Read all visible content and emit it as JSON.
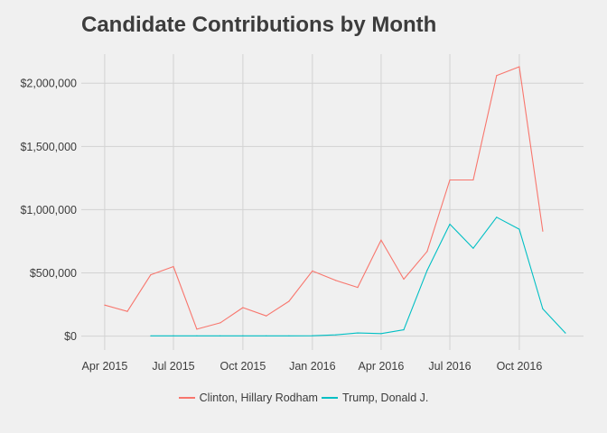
{
  "chart_data": {
    "type": "line",
    "title": "Candidate Contributions by Month",
    "xlabel": "",
    "ylabel": "",
    "x_ticks": [
      "2015-04-01",
      "2015-07-01",
      "2015-10-01",
      "2016-01-01",
      "2016-04-01",
      "2016-07-01",
      "2016-10-01"
    ],
    "x_tick_labels": [
      "Apr 2015",
      "Jul 2015",
      "Oct 2015",
      "Jan 2016",
      "Apr 2016",
      "Jul 2016",
      "Oct 2016"
    ],
    "y_ticks": [
      0,
      500000,
      1000000,
      1500000,
      2000000
    ],
    "y_tick_labels": [
      "$0",
      "$500,000",
      "$1,000,000",
      "$1,500,000",
      "$2,000,000"
    ],
    "xlim": [
      "2015-03-01",
      "2016-12-25"
    ],
    "ylim": [
      -110000,
      2230000
    ],
    "grid": true,
    "legend_position": "bottom",
    "series": [
      {
        "name": "Clinton, Hillary Rodham",
        "color": "#f8766d",
        "x": [
          "2015-04-01",
          "2015-05-01",
          "2015-06-01",
          "2015-07-01",
          "2015-08-01",
          "2015-09-01",
          "2015-10-01",
          "2015-11-01",
          "2015-12-01",
          "2016-01-01",
          "2016-02-01",
          "2016-03-01",
          "2016-04-01",
          "2016-05-01",
          "2016-06-01",
          "2016-07-01",
          "2016-08-01",
          "2016-09-01",
          "2016-10-01",
          "2016-11-01"
        ],
        "y": [
          245000,
          195000,
          485000,
          550000,
          55000,
          105000,
          225000,
          160000,
          275000,
          515000,
          440000,
          385000,
          760000,
          450000,
          670000,
          1235000,
          1235000,
          2060000,
          2130000,
          830000
        ]
      },
      {
        "name": "Trump, Donald J.",
        "color": "#00bfc4",
        "x": [
          "2015-06-01",
          "2015-07-01",
          "2015-08-01",
          "2015-09-01",
          "2015-10-01",
          "2015-11-01",
          "2015-12-01",
          "2016-01-01",
          "2016-02-01",
          "2016-03-01",
          "2016-04-01",
          "2016-05-01",
          "2016-06-01",
          "2016-07-01",
          "2016-08-01",
          "2016-09-01",
          "2016-10-01",
          "2016-11-01",
          "2016-12-01"
        ],
        "y": [
          2000,
          2000,
          2000,
          2000,
          2000,
          2000,
          2000,
          3000,
          10000,
          25000,
          20000,
          50000,
          520000,
          885000,
          695000,
          940000,
          845000,
          215000,
          25000
        ]
      }
    ]
  }
}
